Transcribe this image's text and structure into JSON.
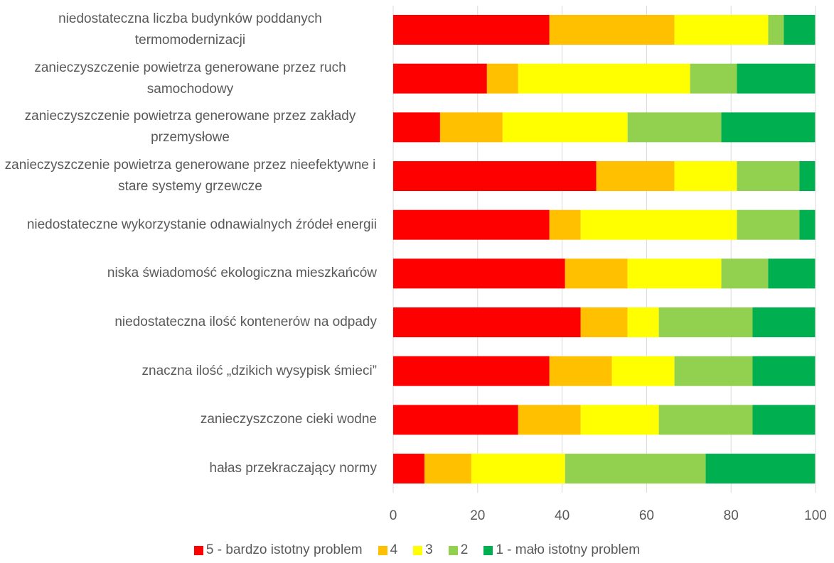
{
  "chart_data": {
    "type": "stacked-barh",
    "categories": [
      "niedostateczna liczba budynków poddanych termomodernizacji",
      "zanieczyszczenie powietrza generowane przez ruch samochodowy",
      "zanieczyszczenie powietrza generowane przez zakłady przemysłowe",
      "zanieczyszczenie powietrza generowane przez nieefektywne i stare systemy grzewcze",
      "niedostateczne wykorzystanie odnawialnych źródeł energii",
      "niska świadomość ekologiczna mieszkańców",
      "niedostateczna ilość kontenerów na odpady",
      "znaczna ilość „dzikich wysypisk śmieci”",
      "zanieczyszczone cieki wodne",
      "hałas przekraczający normy"
    ],
    "series": [
      {
        "name": "5 - bardzo istotny problem",
        "color": "#ff0000",
        "values": [
          37.0,
          22.2,
          11.1,
          48.1,
          37.0,
          40.7,
          44.4,
          37.0,
          29.6,
          7.4
        ]
      },
      {
        "name": "4",
        "color": "#ffc000",
        "values": [
          29.6,
          7.4,
          14.8,
          18.5,
          7.4,
          14.8,
          11.1,
          14.8,
          14.8,
          11.1
        ]
      },
      {
        "name": "3",
        "color": "#ffff00",
        "values": [
          22.2,
          40.7,
          29.6,
          14.8,
          37.0,
          22.2,
          7.4,
          14.8,
          18.5,
          22.2
        ]
      },
      {
        "name": "2",
        "color": "#92d050",
        "values": [
          3.7,
          11.1,
          22.2,
          14.8,
          14.8,
          11.1,
          22.2,
          18.5,
          22.2,
          33.3
        ]
      },
      {
        "name": "1 - mało istotny problem",
        "color": "#00b050",
        "values": [
          7.4,
          18.5,
          22.2,
          3.7,
          3.7,
          11.1,
          14.8,
          14.8,
          14.8,
          25.9
        ]
      }
    ],
    "xlim": [
      0,
      100
    ],
    "xticks": [
      0,
      20,
      40,
      60,
      80,
      100
    ],
    "grid": true,
    "legend": "bottom"
  }
}
